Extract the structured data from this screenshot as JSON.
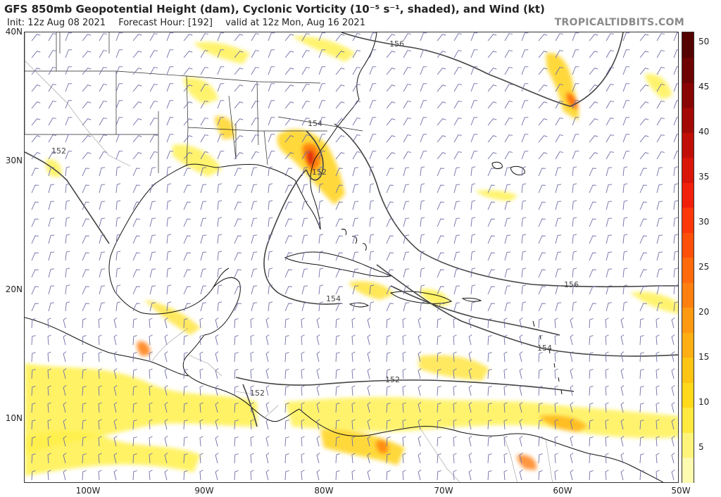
{
  "header": {
    "title": "GFS 850mb Geopotential Height (dam), Cyclonic Vorticity (10⁻⁵ s⁻¹, shaded), and Wind (kt)",
    "init": "Init: 12z Aug 08 2021",
    "forecast_hour": "Forecast Hour: [192]",
    "valid": "valid at 12z Mon, Aug 16 2021",
    "brand": "TROPICALTIDBITS.COM"
  },
  "axes": {
    "lat_labels": [
      "40N",
      "30N",
      "20N",
      "10N"
    ],
    "lon_labels": [
      "100W",
      "90W",
      "80W",
      "70W",
      "60W",
      "50W"
    ]
  },
  "contours": {
    "labels": [
      "156",
      "154",
      "152",
      "152",
      "154",
      "156",
      "154",
      "152",
      "152"
    ]
  },
  "colorbar": {
    "labels": [
      "50",
      "45",
      "40",
      "35",
      "30",
      "25",
      "20",
      "15",
      "10",
      "5"
    ],
    "colors": [
      "#fdfbb0",
      "#fff47a",
      "#ffe93f",
      "#ffd91a",
      "#ffc515",
      "#ffae13",
      "#ff9911",
      "#ff8010",
      "#ff6a0d",
      "#ff500a",
      "#ff380a",
      "#f2200a",
      "#d91508",
      "#c00e06",
      "#a30905",
      "#880504",
      "#6e0303",
      "#550202"
    ]
  }
}
